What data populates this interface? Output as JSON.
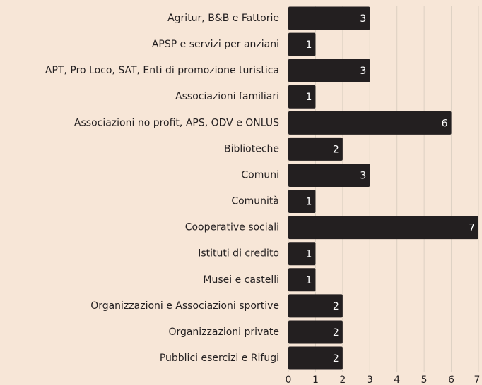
{
  "chart_data": {
    "type": "bar",
    "orientation": "horizontal",
    "categories": [
      "Agritur, B&B e Fattorie",
      "APSP e servizi per anziani",
      "APT, Pro Loco, SAT, Enti di promozione turistica",
      "Associazioni familiari",
      "Associazioni no profit, APS, ODV e ONLUS",
      "Biblioteche",
      "Comuni",
      "Comunità",
      "Cooperative sociali",
      "Istituti di credito",
      "Musei e castelli",
      "Organizzazioni e Associazioni sportive",
      "Organizzazioni private",
      "Pubblici esercizi e Rifugi"
    ],
    "values": [
      3,
      1,
      3,
      1,
      6,
      2,
      3,
      1,
      7,
      1,
      1,
      2,
      2,
      2
    ],
    "color": "#231f20",
    "xlim": [
      0,
      7
    ],
    "xticks": [
      0,
      1,
      2,
      3,
      4,
      5,
      6,
      7
    ],
    "grid": true
  }
}
